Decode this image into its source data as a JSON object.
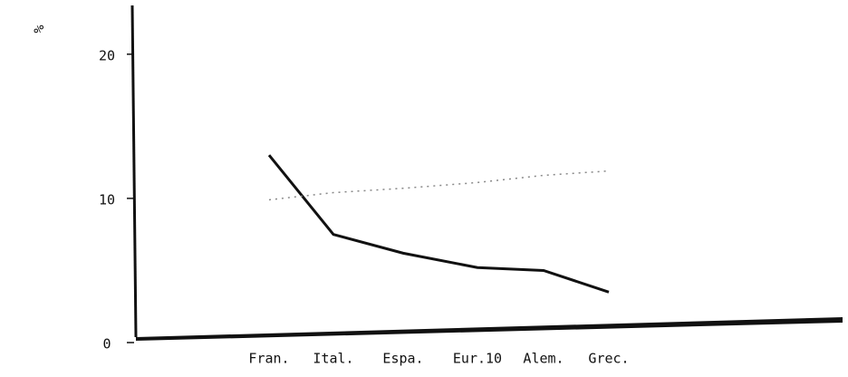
{
  "chart_data": {
    "type": "line",
    "y_label": "%",
    "categories": [
      "Fran.",
      "Ital.",
      "Espa.",
      "Eur.10",
      "Alem.",
      "Grec."
    ],
    "series": [
      {
        "color": "#111111",
        "style": "solid",
        "values": [
          13,
          7.5,
          6.2,
          5.2,
          5.0,
          3.5
        ]
      },
      {
        "color": "#888888",
        "style": "dotted",
        "values": [
          9.9,
          10.4,
          10.7,
          11.1,
          11.6,
          11.9
        ]
      }
    ],
    "ylim": [
      0,
      22
    ],
    "yticks": [
      0,
      10,
      20
    ]
  }
}
